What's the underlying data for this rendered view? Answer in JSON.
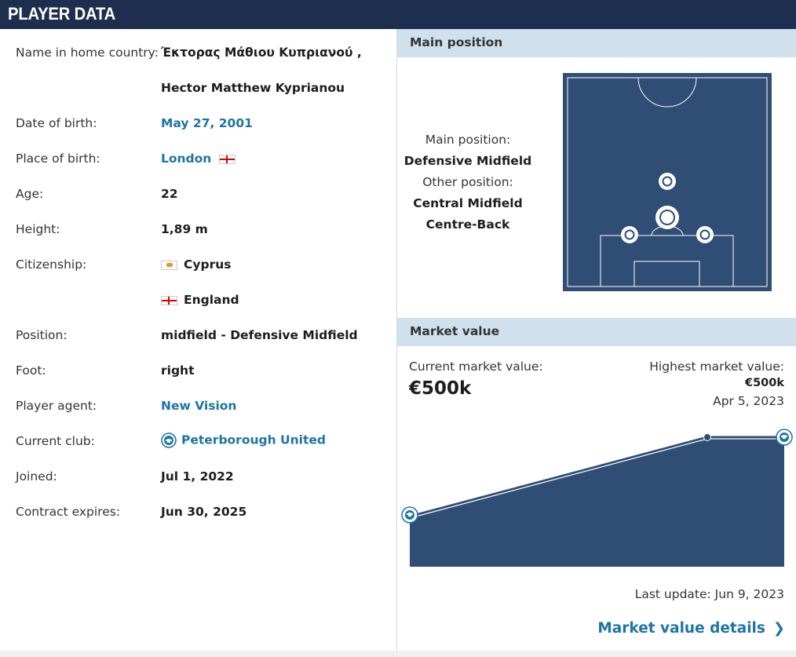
{
  "header": {
    "title": "PLAYER DATA"
  },
  "player": {
    "name_home_label": "Name in home country:",
    "name_home_value": "Έκτορας Μάθιου Κυπριανού ,",
    "name_full": "Hector Matthew Kyprianou",
    "dob_label": "Date of birth:",
    "dob_value": "May 27, 2001",
    "pob_label": "Place of birth:",
    "pob_value": "London",
    "age_label": "Age:",
    "age_value": "22",
    "height_label": "Height:",
    "height_value": "1,89 m",
    "citizenship_label": "Citizenship:",
    "citizenship_1": "Cyprus",
    "citizenship_2": "England",
    "position_label": "Position:",
    "position_value": "midfield - Defensive Midfield",
    "foot_label": "Foot:",
    "foot_value": "right",
    "agent_label": "Player agent:",
    "agent_value": "New Vision",
    "club_label": "Current club:",
    "club_value": "Peterborough United",
    "joined_label": "Joined:",
    "joined_value": "Jul 1, 2022",
    "contract_label": "Contract expires:",
    "contract_value": "Jun 30, 2025"
  },
  "main_position": {
    "title": "Main position",
    "main_label": "Main position:",
    "main_value": "Defensive Midfield",
    "other_label": "Other position:",
    "other_1": "Central Midfield",
    "other_2": "Centre-Back"
  },
  "market_value": {
    "title": "Market value",
    "current_label": "Current market value:",
    "current_value": "€500k",
    "highest_label": "Highest market value:",
    "highest_value": "€500k",
    "highest_date": "Apr 5, 2023",
    "last_update": "Last update: Jun 9, 2023",
    "details_link": "Market value details"
  },
  "colors": {
    "header": "#1d2e4e",
    "section": "#d0e0ec",
    "pitch": "#304d76",
    "link": "#1d75a3"
  }
}
